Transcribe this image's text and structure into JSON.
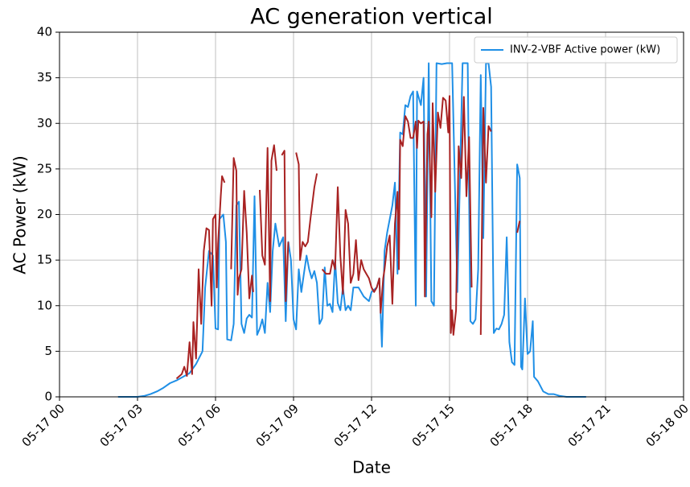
{
  "chart_data": {
    "type": "line",
    "title": "AC generation vertical",
    "xlabel": "Date",
    "ylabel": "AC Power (kW)",
    "xlim": [
      0,
      24
    ],
    "ylim": [
      0,
      40
    ],
    "xticks": [
      {
        "value": 0,
        "label": "05-17 00"
      },
      {
        "value": 3,
        "label": "05-17 03"
      },
      {
        "value": 6,
        "label": "05-17 06"
      },
      {
        "value": 9,
        "label": "05-17 09"
      },
      {
        "value": 12,
        "label": "05-17 12"
      },
      {
        "value": 15,
        "label": "05-17 15"
      },
      {
        "value": 18,
        "label": "05-17 18"
      },
      {
        "value": 21,
        "label": "05-17 21"
      },
      {
        "value": 24,
        "label": "05-18 00"
      }
    ],
    "yticks": [
      0,
      5,
      10,
      15,
      20,
      25,
      30,
      35,
      40
    ],
    "grid": true,
    "legend": "upper right",
    "series": [
      {
        "name": "INV-2-VBF Active power (kW)",
        "color": "#1f8fe6",
        "x": [
          2.25,
          2.5,
          2.75,
          3.0,
          3.25,
          3.5,
          3.75,
          4.0,
          4.25,
          4.5,
          4.75,
          5.0,
          5.25,
          5.5,
          5.6,
          5.75,
          5.9,
          6.0,
          6.1,
          6.15,
          6.3,
          6.4,
          6.45,
          6.6,
          6.7,
          6.8,
          6.9,
          7.0,
          7.1,
          7.2,
          7.3,
          7.4,
          7.5,
          7.6,
          7.7,
          7.8,
          7.9,
          8.0,
          8.1,
          8.2,
          8.3,
          8.45,
          8.6,
          8.7,
          8.8,
          8.9,
          9.0,
          9.1,
          9.2,
          9.3,
          9.4,
          9.5,
          9.6,
          9.7,
          9.8,
          9.9,
          10.0,
          10.1,
          10.2,
          10.3,
          10.4,
          10.5,
          10.6,
          10.7,
          10.8,
          10.9,
          11.0,
          11.1,
          11.2,
          11.3,
          11.5,
          11.7,
          11.9,
          12.0,
          12.2,
          12.3,
          12.4,
          12.5,
          12.6,
          12.8,
          12.9,
          13.0,
          13.1,
          13.2,
          13.3,
          13.4,
          13.5,
          13.6,
          13.7,
          13.75,
          13.9,
          14.0,
          14.1,
          14.2,
          14.3,
          14.4,
          14.5,
          14.7,
          14.9,
          15.1,
          15.3,
          15.5,
          15.7,
          15.8,
          15.9,
          16.0,
          16.1,
          16.2,
          16.3,
          16.4,
          16.5,
          16.6,
          16.7,
          16.8,
          16.9,
          17.0,
          17.1,
          17.2,
          17.3,
          17.4,
          17.5,
          17.6,
          17.7,
          17.75,
          17.8,
          17.9,
          18.0,
          18.1,
          18.2,
          18.25,
          18.4,
          18.6,
          18.8,
          19.0,
          19.25,
          19.5,
          20.25
        ],
        "values": [
          0,
          0,
          0,
          0,
          0.1,
          0.3,
          0.6,
          1.0,
          1.5,
          1.8,
          2.2,
          2.6,
          3.6,
          5,
          12,
          16,
          15.5,
          7.5,
          7.4,
          19.5,
          20,
          17,
          6.3,
          6.2,
          8,
          21,
          21.4,
          8,
          7,
          8.6,
          9,
          8.7,
          22,
          6.8,
          7.5,
          8.5,
          7,
          12.5,
          9.3,
          16,
          19,
          16.5,
          17.5,
          8.3,
          17,
          15,
          8.5,
          7.4,
          14,
          11.5,
          13.5,
          15.5,
          14,
          13,
          13.8,
          12.5,
          8,
          8.6,
          14.2,
          10,
          10.2,
          9.3,
          15,
          10.3,
          9.5,
          12,
          9.5,
          10,
          9.5,
          12,
          12,
          11,
          10.5,
          11.5,
          12,
          13,
          5.5,
          16,
          18,
          21,
          23.5,
          13.5,
          29,
          28.8,
          32,
          31.8,
          33,
          33.5,
          10,
          33.5,
          32,
          35,
          11,
          36.6,
          10.5,
          10,
          36.6,
          36.5,
          36.6,
          36.6,
          11.5,
          36.6,
          36.6,
          8.3,
          8,
          8.5,
          14,
          35.3,
          17.4,
          36.6,
          36.6,
          34,
          7,
          7.5,
          7.4,
          8,
          9,
          17.5,
          6,
          3.8,
          3.5,
          25.5,
          24,
          3.3,
          3,
          10.8,
          4.7,
          5,
          8.3,
          2.2,
          1.7,
          0.6,
          0.3,
          0.3,
          0.1,
          0,
          0
        ]
      },
      {
        "color": "#a82222",
        "x": [
          4.5,
          4.7,
          4.8,
          4.9,
          5.0,
          5.1,
          5.15,
          5.25,
          5.35,
          5.45,
          5.55,
          5.65,
          5.75,
          5.85,
          5.9,
          6.0,
          6.05,
          6.1,
          6.2,
          6.25,
          6.35,
          null,
          6.6,
          6.7,
          6.8,
          6.85,
          6.9,
          7.0,
          7.1,
          7.2,
          7.3,
          7.4,
          7.45,
          null,
          7.7,
          7.8,
          7.9,
          8.0,
          8.1,
          8.15,
          8.25,
          8.35,
          null,
          8.55,
          8.65,
          8.7,
          8.8,
          null,
          9.1,
          9.2,
          9.25,
          9.35,
          9.45,
          9.55,
          9.65,
          9.8,
          9.9,
          null,
          10.1,
          10.25,
          10.4,
          10.5,
          10.6,
          10.7,
          10.8,
          10.9,
          11.0,
          11.1,
          11.2,
          11.3,
          11.4,
          11.5,
          11.6,
          11.7,
          11.8,
          11.9,
          12.0,
          12.1,
          12.2,
          12.3,
          12.35,
          12.45,
          12.5,
          12.6,
          12.7,
          12.8,
          12.9,
          13.0,
          13.05,
          13.1,
          13.2,
          13.3,
          13.4,
          13.5,
          13.6,
          13.7,
          13.75,
          13.8,
          13.9,
          14.0,
          14.05,
          14.15,
          14.2,
          14.3,
          14.35,
          14.45,
          14.55,
          14.65,
          14.75,
          14.85,
          14.95,
          15.0,
          15.05,
          15.1,
          15.15,
          15.25,
          15.35,
          15.45,
          15.55,
          15.65,
          15.75,
          15.85,
          null,
          16.2,
          16.3,
          16.4,
          16.5,
          16.6,
          null,
          17.6,
          17.7
        ],
        "values": [
          2,
          2.5,
          3.3,
          2.3,
          6,
          2.5,
          8.2,
          4.2,
          14,
          8,
          16,
          18.5,
          18.3,
          10,
          19.5,
          20,
          12,
          16.8,
          22,
          24.2,
          23.5,
          null,
          14,
          26.2,
          24.8,
          11.2,
          13,
          14,
          22.6,
          18,
          10.8,
          13.3,
          11.5,
          null,
          22.7,
          15.5,
          14.5,
          27.3,
          10.5,
          25.9,
          27.6,
          24.8,
          null,
          26.5,
          27,
          10.5,
          17,
          null,
          26.8,
          25.5,
          15,
          17,
          16.5,
          17,
          19.5,
          23,
          24.5,
          null,
          14,
          13.5,
          13.5,
          15,
          14,
          23,
          15.5,
          11.3,
          20.5,
          19,
          12.5,
          13.5,
          17.2,
          12.8,
          15,
          14,
          13.5,
          13,
          12,
          11.5,
          12,
          13,
          9.2,
          13,
          14,
          16.5,
          17.7,
          10.2,
          19,
          22.5,
          14,
          28.2,
          27.5,
          30.8,
          30.2,
          28.4,
          28.4,
          30.2,
          27.3,
          30.3,
          30,
          30.2,
          11,
          28.8,
          30.2,
          19.7,
          32.2,
          22.5,
          31.2,
          29.5,
          32.8,
          32.5,
          29,
          33,
          7,
          9.5,
          6.8,
          9.5,
          27.5,
          24,
          32.9,
          22,
          28.5,
          12,
          null,
          6.8,
          31.7,
          23.5,
          29.7,
          29.1,
          null,
          18,
          19.3
        ]
      }
    ]
  }
}
